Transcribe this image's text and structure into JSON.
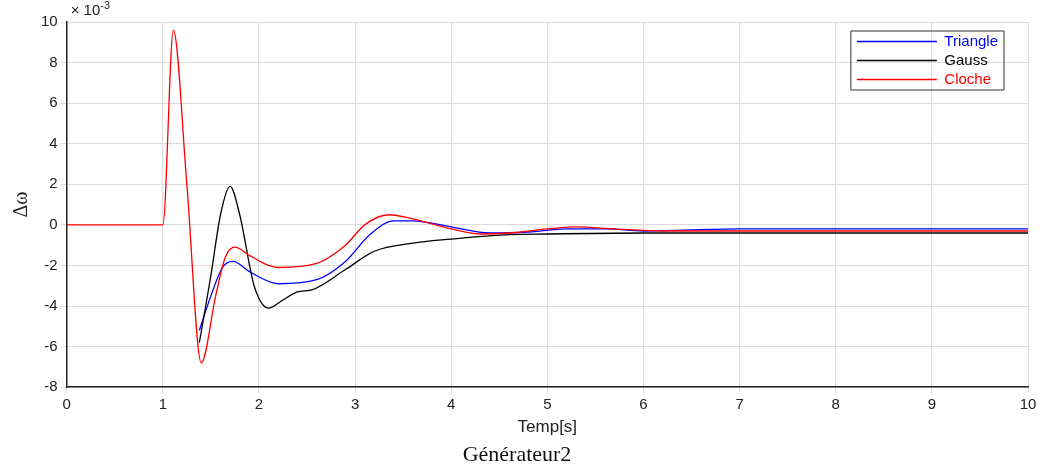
{
  "chart_data": {
    "type": "line",
    "title": "Générateur2",
    "xlabel": "Temp[s]",
    "ylabel": "Δω",
    "annotations": [
      "× 10$^{-3}$"
    ],
    "xlim": [
      0,
      10
    ],
    "xticks": [
      0,
      1,
      2,
      3,
      4,
      5,
      6,
      7,
      8,
      9,
      10
    ],
    "ylim": [
      -8,
      10
    ],
    "yticks": [
      -8,
      -6,
      -4,
      -2,
      0,
      2,
      4,
      6,
      8,
      10
    ],
    "grid": true,
    "legend": "top right",
    "marker": "none",
    "line_style": "solid",
    "series": [
      {
        "name": "Triangle",
        "color": "#0000ff",
        "x": [
          1.38,
          1.5,
          1.62,
          1.73,
          1.9,
          2.2,
          2.6,
          2.9,
          3.15,
          3.4,
          3.6,
          4,
          4.4,
          4.8,
          5.2,
          5.6,
          6,
          7,
          8,
          9,
          10
        ],
        "values": [
          -5.2,
          -3.5,
          -2.1,
          -1.8,
          -2.3,
          -2.9,
          -2.7,
          -1.8,
          -0.5,
          0.2,
          0.2,
          -0.1,
          -0.4,
          -0.35,
          -0.2,
          -0.2,
          -0.3,
          -0.2,
          -0.2,
          -0.2,
          -0.2
        ]
      },
      {
        "name": "Gauss",
        "color": "#000000",
        "x": [
          1.38,
          1.5,
          1.6,
          1.7,
          1.8,
          1.95,
          2.1,
          2.25,
          2.4,
          2.55,
          2.9,
          3.2,
          3.6,
          4,
          4.5,
          5,
          6,
          7,
          8,
          9,
          10
        ],
        "values": [
          -5.8,
          -2.5,
          0.5,
          1.9,
          0.5,
          -3,
          -4.1,
          -3.7,
          -3.3,
          -3.2,
          -2.2,
          -1.3,
          -0.9,
          -0.7,
          -0.5,
          -0.45,
          -0.4,
          -0.4,
          -0.4,
          -0.4,
          -0.4
        ]
      },
      {
        "name": "Cloche",
        "color": "#ff0000",
        "x": [
          0,
          1,
          1.11,
          1.25,
          1.4,
          1.55,
          1.65,
          1.75,
          1.9,
          2.1,
          2.2,
          2.6,
          2.9,
          3.1,
          3.35,
          3.6,
          4,
          4.3,
          4.6,
          5,
          5.3,
          5.7,
          6.2,
          7,
          8,
          9,
          10
        ],
        "values": [
          0,
          0,
          9.6,
          2,
          -6.8,
          -3.5,
          -1.6,
          -1.1,
          -1.5,
          -2,
          -2.1,
          -1.9,
          -1,
          0,
          0.5,
          0.3,
          -0.2,
          -0.45,
          -0.4,
          -0.2,
          -0.1,
          -0.2,
          -0.3,
          -0.3,
          -0.3,
          -0.3,
          -0.3
        ]
      }
    ]
  }
}
